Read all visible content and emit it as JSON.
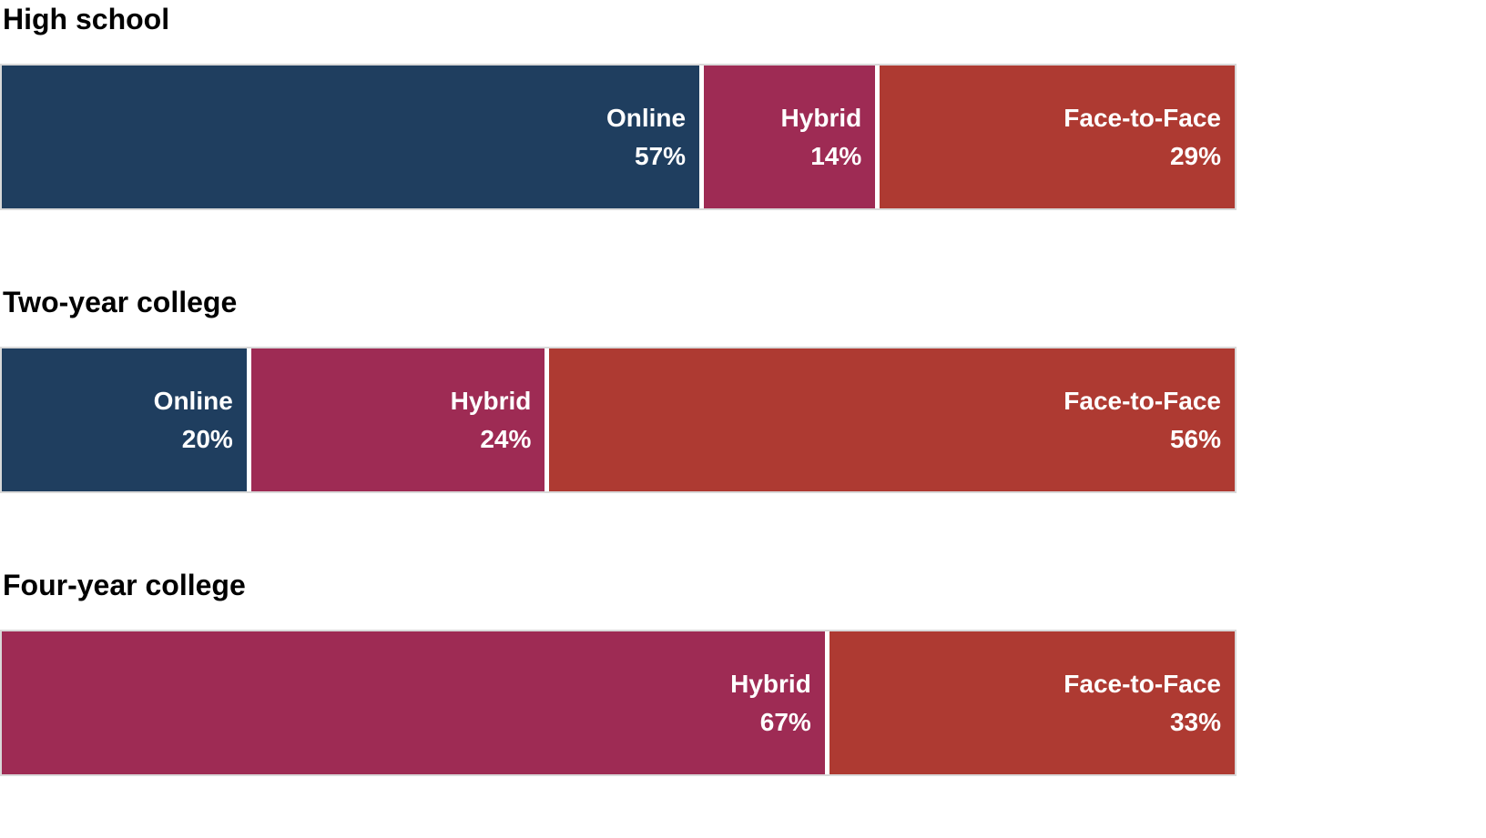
{
  "page": {
    "background": "#FFFFFF"
  },
  "styles": {
    "divider_color": "#FFFFFF",
    "bar_border_color": "#D9D9D9",
    "label_text_color": "#FFFFFF",
    "title_color": "#000000"
  },
  "chart_data": {
    "type": "bar",
    "subtype": "horizontal_stacked_percent",
    "unit": "%",
    "grid": false,
    "axes": "none",
    "legend_position": "none",
    "labels_position": "inside-right, name above value",
    "categories": [
      "Online",
      "Hybrid",
      "Face-to-Face"
    ],
    "colors": {
      "Online": "#1F3E5F",
      "Hybrid": "#9E2B54",
      "Face-to-Face": "#AE3A32"
    },
    "groups": [
      {
        "title": "High school",
        "segments": [
          {
            "label": "Online",
            "value": 57
          },
          {
            "label": "Hybrid",
            "value": 14
          },
          {
            "label": "Face-to-Face",
            "value": 29
          }
        ]
      },
      {
        "title": "Two-year college",
        "segments": [
          {
            "label": "Online",
            "value": 20
          },
          {
            "label": "Hybrid",
            "value": 24
          },
          {
            "label": "Face-to-Face",
            "value": 56
          }
        ]
      },
      {
        "title": "Four-year college",
        "segments": [
          {
            "label": "Hybrid",
            "value": 67
          },
          {
            "label": "Face-to-Face",
            "value": 33
          }
        ]
      }
    ]
  }
}
